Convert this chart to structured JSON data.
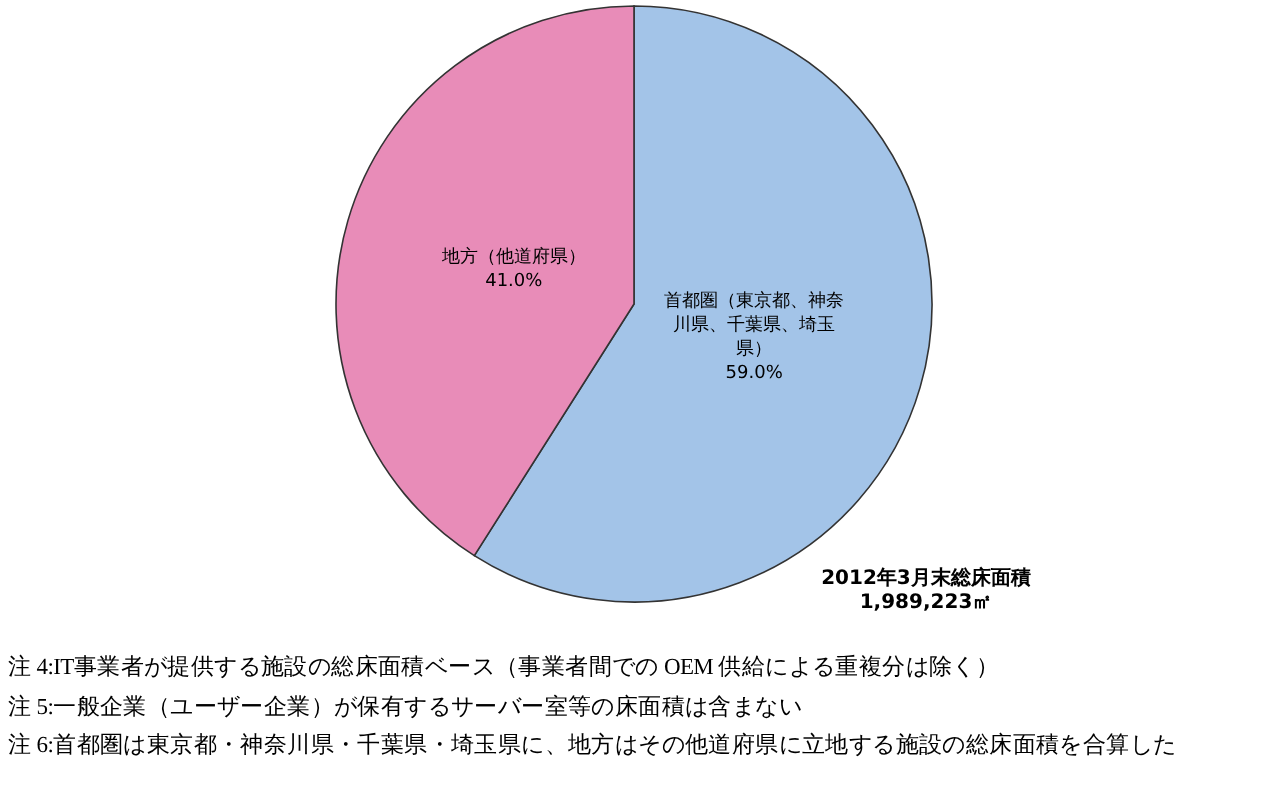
{
  "chart_data": {
    "type": "pie",
    "categories": [
      "首都圏（東京都、神奈川県、千葉県、埼玉県）",
      "地方（他道府県）"
    ],
    "values": [
      59.0,
      41.0
    ],
    "value_labels": [
      "59.0%",
      "41.0%"
    ],
    "colors": [
      "#a3c4e8",
      "#e88cb8"
    ],
    "annotations": [
      "2012年3月末総床面積 1,989,223㎡",
      "注 4:IT事業者が提供する施設の総床面積ベース（事業者間での OEM 供給による重複分は除く）",
      "注 5:一般企業（ユーザー企業）が保有するサーバー室等の床面積は含まない",
      "注 6:首都圏は東京都・神奈川県・千葉県・埼玉県に、地方はその他道府県に立地する施設の総床面積を合算した"
    ]
  }
}
